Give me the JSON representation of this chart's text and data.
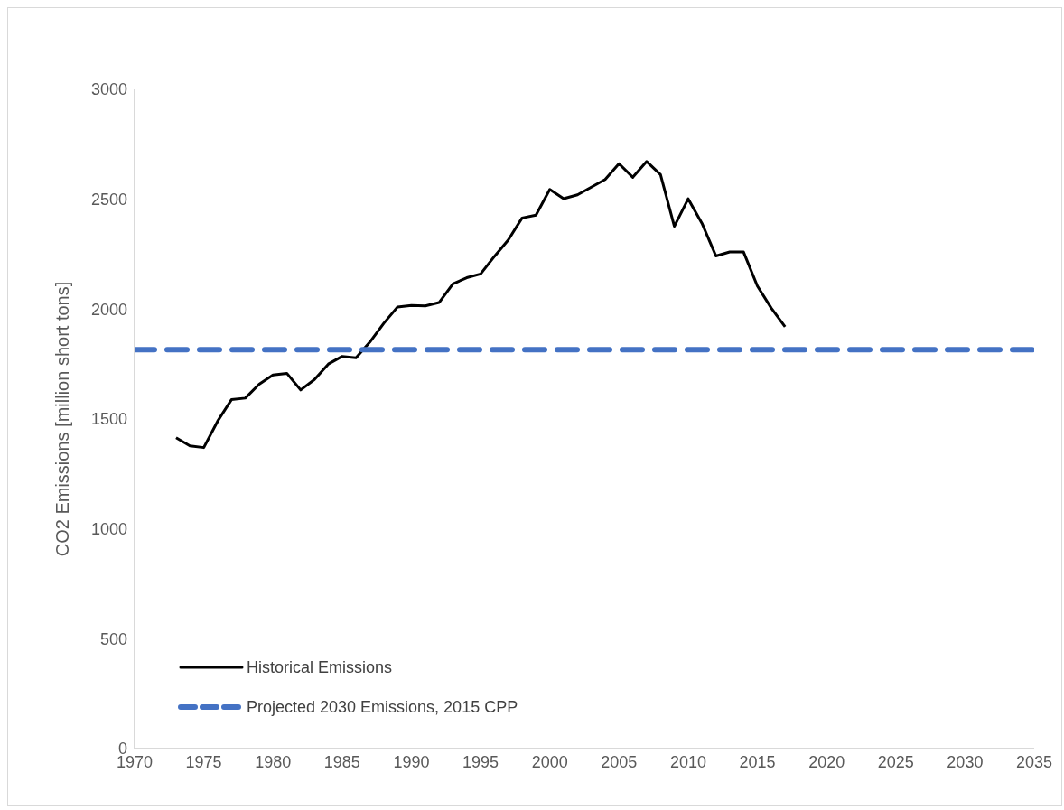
{
  "chart_data": {
    "type": "line",
    "ylabel": "CO2 Emissions [million short tons]",
    "xlim": [
      1970,
      2035
    ],
    "xticks": [
      1970,
      1975,
      1980,
      1985,
      1990,
      1995,
      2000,
      2005,
      2010,
      2015,
      2020,
      2025,
      2030,
      2035
    ],
    "ylim": [
      0,
      3000
    ],
    "yticks": [
      0,
      500,
      1000,
      1500,
      2000,
      2500,
      3000
    ],
    "legend": "bottom left",
    "marker": "none",
    "series": [
      {
        "name": "Historical Emissions",
        "color": "#000000",
        "line_style": "solid",
        "x": [
          1973,
          1974,
          1975,
          1976,
          1977,
          1978,
          1979,
          1980,
          1981,
          1982,
          1983,
          1984,
          1985,
          1986,
          1987,
          1988,
          1989,
          1990,
          1991,
          1992,
          1993,
          1994,
          1995,
          1996,
          1997,
          1998,
          1999,
          2000,
          2001,
          2002,
          2003,
          2004,
          2005,
          2006,
          2007,
          2008,
          2009,
          2010,
          2011,
          2012,
          2013,
          2014,
          2015,
          2016,
          2017
        ],
        "values": [
          1415,
          1378,
          1370,
          1490,
          1588,
          1595,
          1658,
          1700,
          1708,
          1632,
          1680,
          1750,
          1785,
          1778,
          1850,
          1935,
          2010,
          2017,
          2015,
          2030,
          2115,
          2143,
          2160,
          2240,
          2315,
          2415,
          2428,
          2545,
          2503,
          2520,
          2555,
          2590,
          2662,
          2600,
          2672,
          2612,
          2377,
          2502,
          2390,
          2242,
          2260,
          2260,
          2105,
          2005,
          1920
        ]
      },
      {
        "name": "Projected 2030 Emissions, 2015 CPP",
        "color": "#4472c4",
        "line_style": "dashed",
        "x": [
          1970,
          2035
        ],
        "values": [
          1815,
          1815
        ]
      }
    ]
  }
}
